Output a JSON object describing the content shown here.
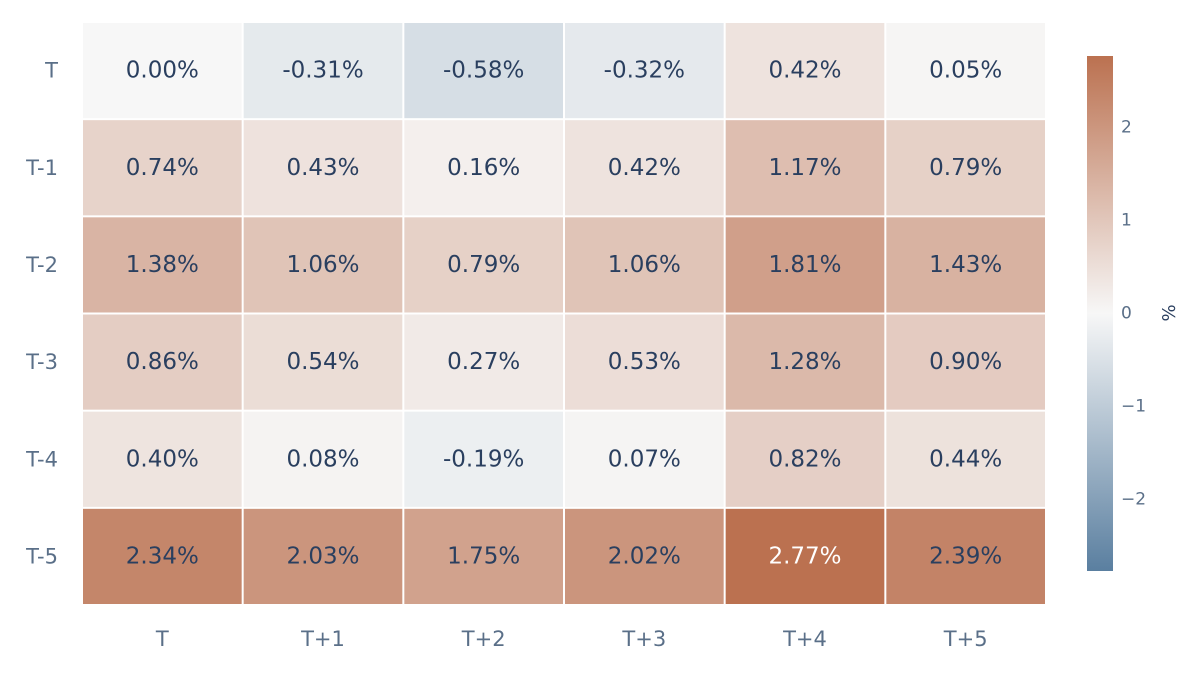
{
  "chart_data": {
    "type": "heatmap",
    "x_labels": [
      "T",
      "T+1",
      "T+2",
      "T+3",
      "T+4",
      "T+5"
    ],
    "y_labels": [
      "T",
      "T-1",
      "T-2",
      "T-3",
      "T-4",
      "T-5"
    ],
    "values": [
      [
        0.0,
        -0.31,
        -0.58,
        -0.32,
        0.42,
        0.05
      ],
      [
        0.74,
        0.43,
        0.16,
        0.42,
        1.17,
        0.79
      ],
      [
        1.38,
        1.06,
        0.79,
        1.06,
        1.81,
        1.43
      ],
      [
        0.86,
        0.54,
        0.27,
        0.53,
        1.28,
        0.9
      ],
      [
        0.4,
        0.08,
        -0.19,
        0.07,
        0.82,
        0.44
      ],
      [
        2.34,
        2.03,
        1.75,
        2.02,
        2.77,
        2.39
      ]
    ],
    "cell_text": [
      [
        "0.00%",
        "-0.31%",
        "-0.58%",
        "-0.32%",
        "0.42%",
        "0.05%"
      ],
      [
        "0.74%",
        "0.43%",
        "0.16%",
        "0.42%",
        "1.17%",
        "0.79%"
      ],
      [
        "1.38%",
        "1.06%",
        "0.79%",
        "1.06%",
        "1.81%",
        "1.43%"
      ],
      [
        "0.86%",
        "0.54%",
        "0.27%",
        "0.53%",
        "1.28%",
        "0.90%"
      ],
      [
        "0.40%",
        "0.08%",
        "-0.19%",
        "0.07%",
        "0.82%",
        "0.44%"
      ],
      [
        "2.34%",
        "2.03%",
        "1.75%",
        "2.02%",
        "2.77%",
        "2.39%"
      ]
    ],
    "colorbar": {
      "title": "%",
      "range": [
        -2.77,
        2.77
      ],
      "ticks": [
        2,
        1,
        0,
        -1,
        -2
      ],
      "tick_labels": [
        "2",
        "1",
        "0",
        "−1",
        "−2"
      ],
      "colors": {
        "low": "#5a7fa0",
        "mid": "#f7f7f7",
        "high": "#bb7150"
      }
    },
    "text_colors": {
      "dark": "#2a3f5f",
      "light": "#ffffff"
    }
  }
}
